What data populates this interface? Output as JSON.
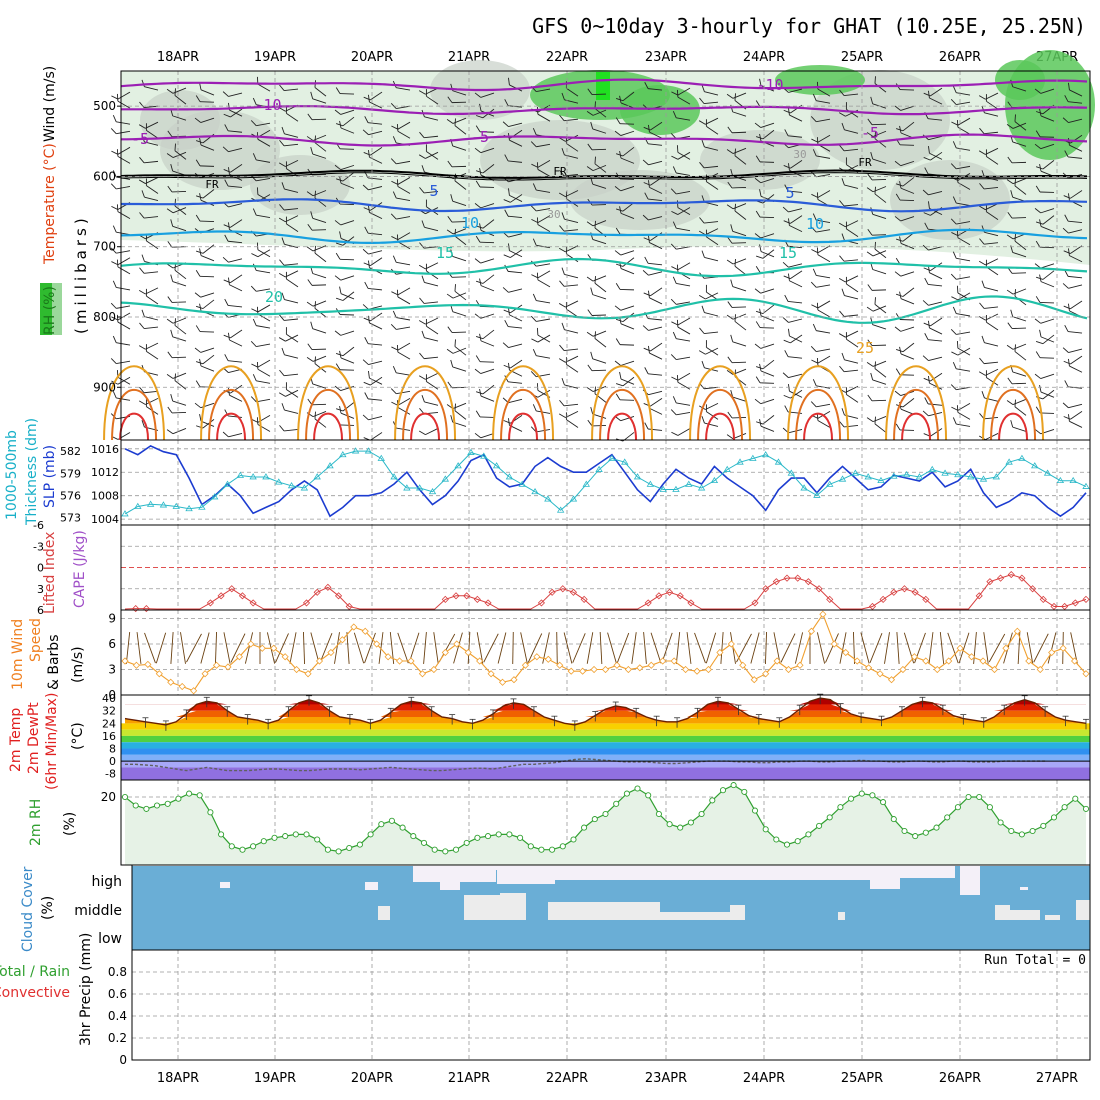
{
  "title": "GFS 0~10day 3-hourly for GHAT (10.25E, 25.25N)",
  "dates": [
    "18APR",
    "19APR",
    "20APR",
    "21APR",
    "22APR",
    "23APR",
    "24APR",
    "25APR",
    "26APR",
    "27APR"
  ],
  "colors": {
    "rh_green": "#5ac85a",
    "rh_light": "#e2f0e2",
    "wind_purple": "#9b1fb4",
    "fr_black": "#000000",
    "temp_blue": "#2a5cd8",
    "temp_lightblue": "#18a0e0",
    "temp_teal": "#20c0a8",
    "temp_orange": "#e8a020",
    "temp_red": "#e03030",
    "slp_blue": "#1c3cd0",
    "thick_cyan": "#2ab8c8",
    "li_red": "#d84040",
    "wind_orange": "#f0a030",
    "rh2m_green": "#30a030",
    "cloud_blue": "#6aaed6"
  },
  "chart_data": [
    {
      "panel": "upper-air",
      "type": "line",
      "y_axis_label": "(millibars)",
      "left_labels": [
        "RH (%)",
        "Temperature (°C)",
        "Wind (m/s)"
      ],
      "ylim": [
        975,
        450
      ],
      "y_ticks": [
        500,
        600,
        700,
        800,
        900
      ],
      "contour_labels": [
        "-10",
        "-10",
        "-5",
        "-5",
        "-5",
        "FR",
        "FR",
        "FR",
        "5",
        "5",
        "10",
        "10",
        "15",
        "15",
        "20",
        "25",
        "30",
        "30"
      ]
    },
    {
      "panel": "slp-thickness",
      "type": "line",
      "left_labels": [
        "1000-500mb",
        "Thickness (dm)",
        "SLP (mb)"
      ],
      "thickness_ticks": [
        "582",
        "579",
        "576",
        "573"
      ],
      "slp_ticks": [
        "1016",
        "1012",
        "1008",
        "1004"
      ],
      "series": [
        {
          "name": "SLP (mb)",
          "values": [
            1016,
            1015,
            1016.5,
            1015.5,
            1015,
            1011,
            1006.5,
            1008,
            1010,
            1008,
            1005,
            1006,
            1007,
            1009,
            1010.5,
            1009,
            1004.5,
            1006,
            1008,
            1008,
            1008.5,
            1010,
            1012,
            1009,
            1006.5,
            1008,
            1010.5,
            1014,
            1015,
            1011,
            1009.5,
            1010,
            1013,
            1014.5,
            1013,
            1012,
            1012,
            1013.5,
            1015,
            1012,
            1009,
            1007,
            1010,
            1012.5,
            1011,
            1010,
            1013,
            1011,
            1009.5,
            1008,
            1005.5,
            1009,
            1011,
            1011,
            1008.5,
            1011,
            1013,
            1011,
            1009,
            1009.5,
            1011.5,
            1011,
            1010.5,
            1012,
            1009.5,
            1010.5,
            1012.5,
            1008.5,
            1006,
            1007,
            1008.5,
            1008,
            1006,
            1004.5,
            1006,
            1008.5
          ]
        },
        {
          "name": "1000-500mb Thickness (dm)",
          "values": [
            573.5,
            574.5,
            574.8,
            574.7,
            574.5,
            574.2,
            574.4,
            575.8,
            577.5,
            578.7,
            578.5,
            578.5,
            577.8,
            577.3,
            577,
            578.5,
            580,
            581.5,
            582,
            582,
            581,
            578.5,
            577,
            577,
            576.5,
            578.2,
            580,
            581.8,
            581.3,
            580,
            578.5,
            577.5,
            576.5,
            575.5,
            574,
            575.5,
            577.5,
            579.5,
            581,
            580.5,
            578.5,
            577.5,
            576.8,
            576.8,
            577.5,
            577,
            578,
            579.5,
            580.5,
            581,
            581.5,
            580.5,
            579,
            577,
            576,
            577.5,
            578.2,
            579,
            578.5,
            578,
            578.6,
            578.8,
            578.5,
            579.5,
            579,
            578.8,
            578.5,
            578.2,
            578.5,
            580.5,
            581,
            580,
            579,
            578,
            578,
            577.2
          ]
        }
      ]
    },
    {
      "panel": "cape-li",
      "type": "line",
      "left_labels": [
        "CAPE (J/kg)",
        "Lifted Index"
      ],
      "li_ticks": [
        "-6",
        "-3",
        "0",
        "3",
        "6"
      ],
      "ylim": [
        -6,
        6
      ],
      "series": [
        {
          "name": "Lifted Index",
          "values": [
            6,
            5.8,
            5.8,
            6,
            6,
            6,
            6,
            6,
            5,
            4,
            3,
            4,
            5,
            6,
            6,
            6,
            6,
            5,
            3.5,
            2.8,
            4,
            5.5,
            6,
            6,
            6,
            6,
            6,
            6,
            6,
            6,
            4.5,
            4,
            4,
            4.5,
            5,
            6,
            6,
            6,
            6,
            5,
            3.5,
            3,
            3.5,
            4.5,
            6,
            6,
            6,
            6,
            6,
            5,
            4,
            3.5,
            4,
            5,
            6,
            6,
            6,
            6,
            6,
            5,
            3,
            2,
            1.5,
            1.5,
            2,
            3,
            4.5,
            6,
            6,
            6,
            5.5,
            4.5,
            3.5,
            3,
            3.5,
            4.5,
            6,
            6,
            6,
            6,
            4,
            2,
            1.5,
            1,
            1.5,
            3,
            4.5,
            5.5,
            5.5,
            5,
            4.5
          ]
        }
      ]
    },
    {
      "panel": "wind10m",
      "type": "line",
      "left_labels": [
        "10m Wind",
        "Speed",
        "& Barbs",
        "(m/s)"
      ],
      "y_ticks": [
        "0",
        "3",
        "6",
        "9"
      ],
      "ylim": [
        0,
        10
      ],
      "series": [
        {
          "name": "10m Wind Speed (m/s)",
          "values": [
            4,
            3.5,
            3.6,
            2.5,
            1.5,
            1,
            0.5,
            2.5,
            3.5,
            3.3,
            4.5,
            6,
            5.5,
            5.5,
            4.5,
            3,
            2.5,
            4,
            5,
            6.5,
            8,
            7.5,
            6,
            4.5,
            4,
            4,
            2.5,
            3,
            5,
            6,
            5,
            4,
            2.5,
            1.5,
            1.8,
            3.5,
            4.5,
            4.2,
            3.5,
            2.8,
            2.8,
            3,
            3,
            3.5,
            3,
            3.2,
            3.5,
            4,
            4,
            3,
            2.8,
            3,
            5,
            6,
            3.5,
            1.8,
            2.5,
            4,
            3,
            3.5,
            7.5,
            9.5,
            6,
            5,
            4,
            3.2,
            2.5,
            1.8,
            3,
            4.5,
            4,
            3,
            4,
            5.5,
            4.5,
            4,
            3,
            5.5,
            7.5,
            4,
            3,
            5,
            5.5,
            4,
            2.5
          ]
        }
      ]
    },
    {
      "panel": "temp2m",
      "type": "area",
      "left_labels": [
        "2m Temp",
        "2m DewPt",
        "(6hr Min/Max)",
        "(°C)"
      ],
      "y_ticks": [
        "40",
        "32",
        "24",
        "16",
        "8",
        "0",
        "-8"
      ],
      "ylim": [
        -12,
        42
      ],
      "series": [
        {
          "name": "2m Temp (°C)",
          "values": [
            27,
            26,
            25,
            24,
            23,
            25,
            30,
            36,
            38,
            37,
            32,
            28,
            27,
            26,
            24,
            26,
            32,
            37,
            39,
            37,
            32,
            28,
            27,
            26,
            24,
            26,
            31,
            36,
            38,
            37,
            32,
            28,
            27,
            25,
            24,
            26,
            30,
            35,
            37,
            36,
            32,
            28,
            26,
            24,
            23,
            25,
            29,
            33,
            35,
            34,
            31,
            28,
            26,
            25,
            25,
            27,
            31,
            36,
            38,
            37,
            33,
            29,
            27,
            26,
            25,
            28,
            33,
            38,
            40,
            39,
            34,
            30,
            28,
            27,
            26,
            28,
            32,
            36,
            38,
            37,
            33,
            29,
            27,
            26,
            25,
            28,
            33,
            37,
            39,
            37,
            32,
            28,
            26,
            25,
            24
          ]
        },
        {
          "name": "2m DewPt (°C)",
          "values": [
            -2,
            -2,
            -2.5,
            -3,
            -4,
            -5,
            -6,
            -5,
            -4,
            -5,
            -6,
            -6,
            -6,
            -5.5,
            -5,
            -5,
            -5.5,
            -6,
            -6,
            -5.5,
            -5,
            -5,
            -5,
            -5.5,
            -5,
            -4.5,
            -4,
            -4.5,
            -5,
            -5.5,
            -6,
            -6,
            -5.5,
            -5,
            -4.5,
            -4.5,
            -5,
            -4,
            -3,
            -2,
            -2,
            -1.5,
            -1,
            0,
            1,
            1.5,
            1,
            0.5,
            0,
            -0.5,
            -0.5,
            -0.5,
            -1,
            -1.5,
            -1.5,
            -1,
            -0.5,
            0,
            0,
            0,
            -0.5,
            -0.5,
            -1,
            -1,
            -0.5,
            -0.5,
            0,
            0,
            -0.5,
            -0.5,
            0,
            0,
            0.5,
            0,
            0,
            -0.5,
            -0.5,
            0,
            0,
            -0.5,
            -0.5,
            0,
            0,
            -0.5,
            -0.5,
            -0.5,
            0,
            0,
            0,
            0,
            0
          ]
        }
      ]
    },
    {
      "panel": "rh2m",
      "type": "area",
      "left_labels": [
        "2m RH",
        "(%)"
      ],
      "y_ticks": [
        "20"
      ],
      "ylim": [
        0,
        25
      ],
      "series": [
        {
          "name": "2m RH (%)",
          "values": [
            20,
            17.5,
            16.5,
            17.5,
            18,
            19.5,
            21,
            20.5,
            15.5,
            9,
            5.5,
            4.5,
            5.5,
            7,
            8,
            8.5,
            9,
            9,
            7.5,
            4.5,
            4,
            5,
            6,
            9,
            12,
            13,
            11,
            8.5,
            6.5,
            4.5,
            4,
            4.5,
            6.5,
            8,
            8.5,
            9,
            9,
            8,
            5.5,
            4.5,
            4.5,
            5.5,
            7.5,
            11,
            13.5,
            15,
            18,
            21,
            22.5,
            20.5,
            15,
            12,
            11,
            12.5,
            15,
            19,
            22,
            23.5,
            21.5,
            16,
            10.5,
            7.5,
            6,
            7,
            9,
            11.5,
            14,
            17,
            19.5,
            21,
            20.5,
            18.5,
            13.5,
            10,
            8.5,
            9.5,
            11,
            14,
            17,
            20,
            20,
            17,
            12.5,
            10,
            9,
            10,
            11.5,
            14,
            17,
            19.5,
            16.5
          ]
        }
      ]
    },
    {
      "panel": "cloud",
      "type": "area",
      "left_labels": [
        "Cloud Cover",
        "(%)"
      ],
      "row_labels": [
        "high",
        "middle",
        "low"
      ]
    },
    {
      "panel": "precip",
      "type": "bar",
      "left_labels": [
        "Total / Rain",
        "Convective",
        "3hr Precip (mm)"
      ],
      "y_ticks": [
        "0.8",
        "0.6",
        "0.4",
        "0.2",
        "0"
      ],
      "ylim": [
        0,
        1
      ],
      "run_total_label": "Run Total = 0",
      "values": []
    }
  ]
}
